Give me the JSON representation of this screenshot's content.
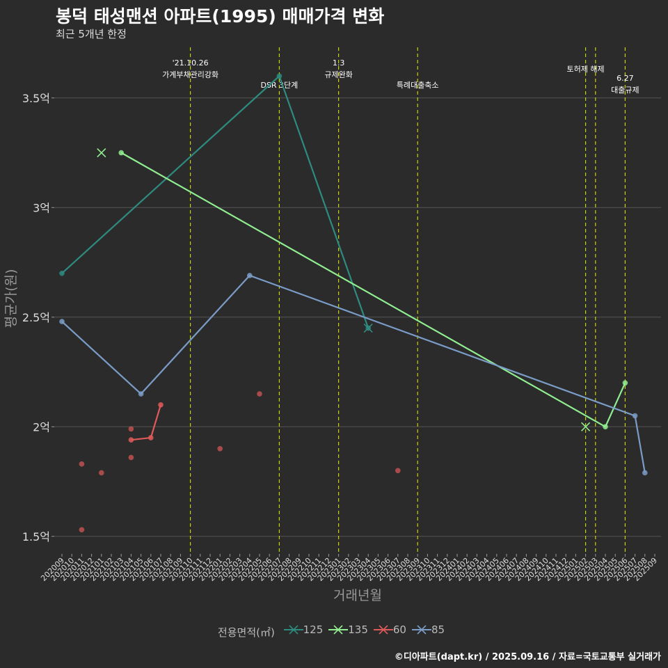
{
  "header": {
    "title": "봉덕 태성맨션 아파트(1995) 매매가격 변화",
    "subtitle": "최근 5개년 한정"
  },
  "caption": "©디아파트(dapt.kr) / 2025.09.16 / 자료=국토교통부 실거래가",
  "colors": {
    "background": "#2b2b2b",
    "grid": "#555555",
    "vline": "#c8d400",
    "series": {
      "125": "#2e8b80",
      "135": "#90ee90",
      "60": "#e05a5a",
      "85": "#7a9cc6"
    }
  },
  "chart_data": {
    "type": "line",
    "title": "봉덕 태성맨션 아파트(1995) 매매가격 변화",
    "subtitle": "최근 5개년 한정",
    "xlabel": "거래년월",
    "ylabel": "평균가(원)",
    "ylim": [
      1.42,
      3.75
    ],
    "yticks": [
      {
        "value": 1.5,
        "label": "1.5억"
      },
      {
        "value": 2.0,
        "label": "2억"
      },
      {
        "value": 2.5,
        "label": "2.5억"
      },
      {
        "value": 3.0,
        "label": "3억"
      },
      {
        "value": 3.5,
        "label": "3.5억"
      }
    ],
    "x_start": "2020-09",
    "x_end": "2025-09",
    "grid": true,
    "legend": {
      "title": "전용면적(㎡)",
      "position": "bottom",
      "entries": [
        "125",
        "135",
        "60",
        "85"
      ]
    },
    "series": [
      {
        "name": "125",
        "line": [
          {
            "x": "2020-09",
            "y": 2.7
          },
          {
            "x": "2022-07",
            "y": 3.6
          },
          {
            "x": "2023-04",
            "y": 2.45
          }
        ],
        "points": [],
        "crosses": [
          {
            "x": "2023-04",
            "y": 2.45
          }
        ]
      },
      {
        "name": "135",
        "line": [
          {
            "x": "2021-03",
            "y": 3.25
          },
          {
            "x": "2025-04",
            "y": 2.0
          },
          {
            "x": "2025-06",
            "y": 2.2
          }
        ],
        "points": [],
        "crosses": [
          {
            "x": "2021-01",
            "y": 3.25
          },
          {
            "x": "2025-02",
            "y": 2.0
          }
        ]
      },
      {
        "name": "60",
        "line": [
          {
            "x": "2021-04",
            "y": 1.94
          },
          {
            "x": "2021-06",
            "y": 1.95
          },
          {
            "x": "2021-07",
            "y": 2.1
          }
        ],
        "points": [
          {
            "x": "2020-11",
            "y": 1.83
          },
          {
            "x": "2020-11",
            "y": 1.53
          },
          {
            "x": "2021-01",
            "y": 1.79
          },
          {
            "x": "2021-04",
            "y": 1.99
          },
          {
            "x": "2021-04",
            "y": 1.86
          },
          {
            "x": "2022-01",
            "y": 1.9
          },
          {
            "x": "2022-05",
            "y": 2.15
          },
          {
            "x": "2023-07",
            "y": 1.8
          }
        ],
        "crosses": []
      },
      {
        "name": "85",
        "line": [
          {
            "x": "2020-09",
            "y": 2.48
          },
          {
            "x": "2021-05",
            "y": 2.15
          },
          {
            "x": "2022-04",
            "y": 2.69
          },
          {
            "x": "2025-07",
            "y": 2.05
          },
          {
            "x": "2025-08",
            "y": 1.79
          }
        ],
        "points": [],
        "crosses": []
      }
    ],
    "events": [
      {
        "x": "2021-10",
        "lines": [
          "'21.10.26",
          "가계부채관리강화"
        ]
      },
      {
        "x": "2022-07",
        "lines": [
          "DSR 3단계"
        ]
      },
      {
        "x": "2023-01",
        "lines": [
          "1.3",
          "규제완화"
        ]
      },
      {
        "x": "2023-09",
        "lines": [
          "특례대출축소"
        ]
      },
      {
        "x": "2025-02",
        "lines": [
          "토허제 해제"
        ]
      },
      {
        "x": "2025-03",
        "lines": []
      },
      {
        "x": "2025-06",
        "lines": [
          "6.27",
          "대출규제"
        ]
      }
    ]
  }
}
